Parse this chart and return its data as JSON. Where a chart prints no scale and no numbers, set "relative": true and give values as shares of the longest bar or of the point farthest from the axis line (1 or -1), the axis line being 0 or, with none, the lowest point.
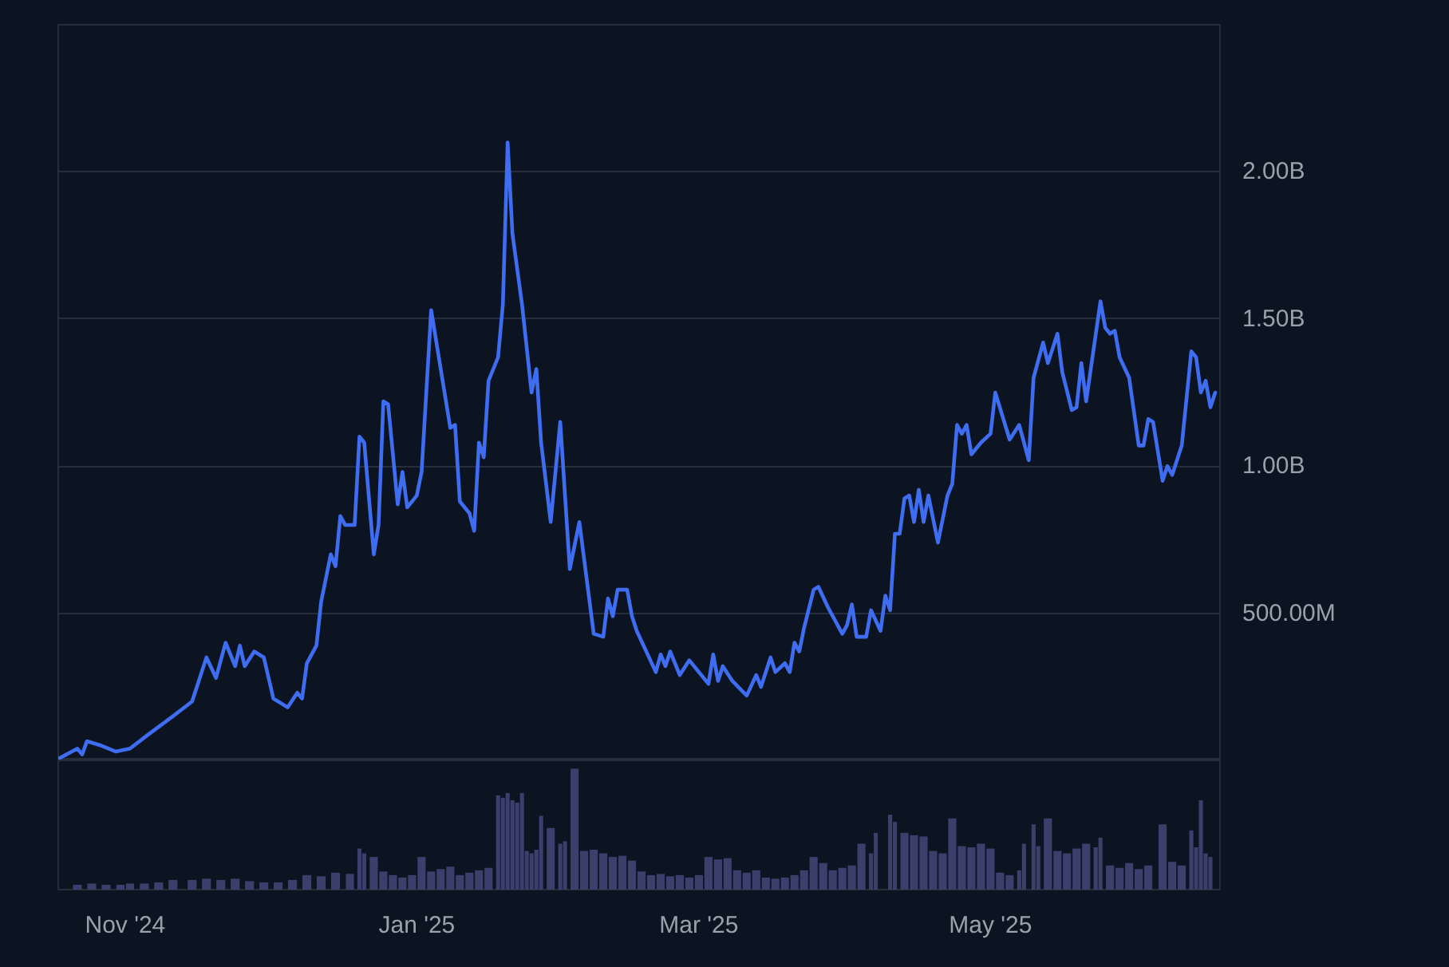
{
  "chart_data": [
    {
      "type": "line",
      "xlim": [
        "2024-10-18",
        "2025-06-18"
      ],
      "ylim": [
        0,
        2500000000.0
      ],
      "yticks": [
        {
          "value": 0,
          "label": null
        },
        {
          "value": 500000000.0,
          "label": "500.00M"
        },
        {
          "value": 1000000000.0,
          "label": "1.00B"
        },
        {
          "value": 1500000000.0,
          "label": "1.50B"
        },
        {
          "value": 2000000000.0,
          "label": "2.00B"
        }
      ],
      "grid": "y",
      "tick_labels": "y",
      "series": [
        {
          "color": "#3f6df2",
          "x": [
            "2024-10-18",
            "2024-10-22",
            "2024-10-23",
            "2024-10-24",
            "2024-10-27",
            "2024-10-30",
            "2024-11-02",
            "2024-11-06",
            "2024-11-11",
            "2024-11-15",
            "2024-11-18",
            "2024-11-20",
            "2024-11-22",
            "2024-11-24",
            "2024-11-25",
            "2024-11-26",
            "2024-11-28",
            "2024-11-30",
            "2024-12-02",
            "2024-12-05",
            "2024-12-07",
            "2024-12-08",
            "2024-12-09",
            "2024-12-11",
            "2024-12-12",
            "2024-12-14",
            "2024-12-15",
            "2024-12-16",
            "2024-12-17",
            "2024-12-19",
            "2024-12-20",
            "2024-12-21",
            "2024-12-23",
            "2024-12-24",
            "2024-12-25",
            "2024-12-26",
            "2024-12-28",
            "2024-12-29",
            "2024-12-30",
            "2025-01-01",
            "2025-01-02",
            "2025-01-04",
            "2025-01-08",
            "2025-01-09",
            "2025-01-10",
            "2025-01-12",
            "2025-01-13",
            "2025-01-14",
            "2025-01-15",
            "2025-01-16",
            "2025-01-18",
            "2025-01-19",
            "2025-01-20",
            "2025-01-21",
            "2025-01-23",
            "2025-01-25",
            "2025-01-26",
            "2025-01-27",
            "2025-01-29",
            "2025-01-31",
            "2025-02-02",
            "2025-02-04",
            "2025-02-07",
            "2025-02-09",
            "2025-02-10",
            "2025-02-11",
            "2025-02-12",
            "2025-02-14",
            "2025-02-15",
            "2025-02-16",
            "2025-02-20",
            "2025-02-21",
            "2025-02-22",
            "2025-02-23",
            "2025-02-25",
            "2025-02-27",
            "2025-03-01",
            "2025-03-03",
            "2025-03-04",
            "2025-03-05",
            "2025-03-06",
            "2025-03-08",
            "2025-03-11",
            "2025-03-13",
            "2025-03-14",
            "2025-03-16",
            "2025-03-17",
            "2025-03-19",
            "2025-03-20",
            "2025-03-21",
            "2025-03-22",
            "2025-03-23",
            "2025-03-25",
            "2025-03-26",
            "2025-03-28",
            "2025-03-31",
            "2025-04-01",
            "2025-04-02",
            "2025-04-03",
            "2025-04-05",
            "2025-04-06",
            "2025-04-08",
            "2025-04-09",
            "2025-04-10",
            "2025-04-11",
            "2025-04-12",
            "2025-04-13",
            "2025-04-14",
            "2025-04-15",
            "2025-04-16",
            "2025-04-17",
            "2025-04-18",
            "2025-04-20",
            "2025-04-22",
            "2025-04-23",
            "2025-04-24",
            "2025-04-25",
            "2025-04-26",
            "2025-04-27",
            "2025-04-29",
            "2025-05-01",
            "2025-05-02",
            "2025-05-05",
            "2025-05-07",
            "2025-05-09",
            "2025-05-10",
            "2025-05-12",
            "2025-05-13",
            "2025-05-15",
            "2025-05-16",
            "2025-05-18",
            "2025-05-19",
            "2025-05-20",
            "2025-05-21",
            "2025-05-24",
            "2025-05-25",
            "2025-05-26",
            "2025-05-27",
            "2025-05-28",
            "2025-05-30",
            "2025-06-01",
            "2025-06-02",
            "2025-06-03",
            "2025-06-04",
            "2025-06-06",
            "2025-06-07",
            "2025-06-08",
            "2025-06-10",
            "2025-06-12",
            "2025-06-13",
            "2025-06-14",
            "2025-06-15",
            "2025-06-16",
            "2025-06-17"
          ],
          "values": [
            5000000.0,
            40000000.0,
            20000000.0,
            65000000.0,
            50000000.0,
            30000000.0,
            40000000.0,
            90000000.0,
            150000000.0,
            200000000.0,
            350000000.0,
            280000000.0,
            400000000.0,
            320000000.0,
            390000000.0,
            320000000.0,
            370000000.0,
            350000000.0,
            210000000.0,
            180000000.0,
            230000000.0,
            210000000.0,
            330000000.0,
            390000000.0,
            540000000.0,
            700000000.0,
            660000000.0,
            830000000.0,
            800000000.0,
            800000000.0,
            1100000000.0,
            1080000000.0,
            700000000.0,
            800000000.0,
            1220000000.0,
            1210000000.0,
            870000000.0,
            980000000.0,
            860000000.0,
            900000000.0,
            980000000.0,
            1530000000.0,
            1130000000.0,
            1140000000.0,
            880000000.0,
            840000000.0,
            780000000.0,
            1080000000.0,
            1030000000.0,
            1290000000.0,
            1370000000.0,
            1550000000.0,
            2100000000.0,
            1790000000.0,
            1550000000.0,
            1250000000.0,
            1330000000.0,
            1080000000.0,
            810000000.0,
            1150000000.0,
            650000000.0,
            810000000.0,
            430000000.0,
            420000000.0,
            550000000.0,
            490000000.0,
            580000000.0,
            580000000.0,
            490000000.0,
            440000000.0,
            300000000.0,
            360000000.0,
            320000000.0,
            370000000.0,
            290000000.0,
            340000000.0,
            300000000.0,
            260000000.0,
            360000000.0,
            270000000.0,
            320000000.0,
            270000000.0,
            220000000.0,
            290000000.0,
            250000000.0,
            350000000.0,
            300000000.0,
            330000000.0,
            300000000.0,
            400000000.0,
            370000000.0,
            450000000.0,
            580000000.0,
            590000000.0,
            520000000.0,
            430000000.0,
            460000000.0,
            530000000.0,
            420000000.0,
            420000000.0,
            510000000.0,
            440000000.0,
            560000000.0,
            510000000.0,
            770000000.0,
            770000000.0,
            890000000.0,
            900000000.0,
            810000000.0,
            920000000.0,
            810000000.0,
            900000000.0,
            740000000.0,
            900000000.0,
            940000000.0,
            1140000000.0,
            1110000000.0,
            1140000000.0,
            1040000000.0,
            1080000000.0,
            1110000000.0,
            1250000000.0,
            1090000000.0,
            1140000000.0,
            1020000000.0,
            1300000000.0,
            1420000000.0,
            1350000000.0,
            1450000000.0,
            1320000000.0,
            1190000000.0,
            1200000000.0,
            1350000000.0,
            1220000000.0,
            1560000000.0,
            1470000000.0,
            1450000000.0,
            1460000000.0,
            1370000000.0,
            1300000000.0,
            1070000000.0,
            1070000000.0,
            1160000000.0,
            1150000000.0,
            950000000.0,
            1000000000.0,
            970000000.0,
            1070000000.0,
            1390000000.0,
            1370000000.0,
            1250000000.0,
            1290000000.0,
            1200000000.0,
            1250000000.0
          ]
        }
      ]
    },
    {
      "type": "bar",
      "relative": true,
      "xlim": [
        "2024-10-18",
        "2025-06-18"
      ],
      "grid": false,
      "tick_labels": "x",
      "xticks": [
        {
          "value": "2024-11-01",
          "label": "Nov '24"
        },
        {
          "value": "2025-01-01",
          "label": "Jan '25"
        },
        {
          "value": "2025-03-01",
          "label": "Mar '25"
        },
        {
          "value": "2025-05-01",
          "label": "May '25"
        }
      ],
      "series": [
        {
          "color": "#3a3f6c",
          "x": [
            "2024-10-22",
            "2024-10-25",
            "2024-10-28",
            "2024-10-31",
            "2024-11-02",
            "2024-11-05",
            "2024-11-08",
            "2024-11-11",
            "2024-11-15",
            "2024-11-18",
            "2024-11-21",
            "2024-11-24",
            "2024-11-27",
            "2024-11-30",
            "2024-12-03",
            "2024-12-06",
            "2024-12-09",
            "2024-12-12",
            "2024-12-15",
            "2024-12-18",
            "2024-12-20",
            "2024-12-21",
            "2024-12-23",
            "2024-12-25",
            "2024-12-27",
            "2024-12-29",
            "2024-12-31",
            "2025-01-02",
            "2025-01-04",
            "2025-01-06",
            "2025-01-08",
            "2025-01-10",
            "2025-01-12",
            "2025-01-14",
            "2025-01-16",
            "2025-01-18",
            "2025-01-19",
            "2025-01-20",
            "2025-01-21",
            "2025-01-22",
            "2025-01-23",
            "2025-01-24",
            "2025-01-25",
            "2025-01-26",
            "2025-01-27",
            "2025-01-29",
            "2025-01-31",
            "2025-02-01",
            "2025-02-03",
            "2025-02-05",
            "2025-02-07",
            "2025-02-09",
            "2025-02-11",
            "2025-02-13",
            "2025-02-15",
            "2025-02-17",
            "2025-02-19",
            "2025-02-21",
            "2025-02-23",
            "2025-02-25",
            "2025-02-27",
            "2025-03-01",
            "2025-03-03",
            "2025-03-05",
            "2025-03-07",
            "2025-03-09",
            "2025-03-11",
            "2025-03-13",
            "2025-03-15",
            "2025-03-17",
            "2025-03-19",
            "2025-03-21",
            "2025-03-23",
            "2025-03-25",
            "2025-03-27",
            "2025-03-29",
            "2025-03-31",
            "2025-04-02",
            "2025-04-04",
            "2025-04-06",
            "2025-04-07",
            "2025-04-10",
            "2025-04-11",
            "2025-04-13",
            "2025-04-15",
            "2025-04-17",
            "2025-04-19",
            "2025-04-21",
            "2025-04-23",
            "2025-04-25",
            "2025-04-27",
            "2025-04-29",
            "2025-05-01",
            "2025-05-03",
            "2025-05-05",
            "2025-05-07",
            "2025-05-08",
            "2025-05-10",
            "2025-05-11",
            "2025-05-13",
            "2025-05-15",
            "2025-05-17",
            "2025-05-19",
            "2025-05-21",
            "2025-05-23",
            "2025-05-24",
            "2025-05-26",
            "2025-05-28",
            "2025-05-30",
            "2025-06-01",
            "2025-06-03",
            "2025-06-06",
            "2025-06-08",
            "2025-06-10",
            "2025-06-12",
            "2025-06-13",
            "2025-06-14",
            "2025-06-15",
            "2025-06-16"
          ],
          "values": [
            0.04,
            0.05,
            0.04,
            0.04,
            0.05,
            0.05,
            0.06,
            0.08,
            0.08,
            0.09,
            0.08,
            0.09,
            0.07,
            0.06,
            0.06,
            0.08,
            0.12,
            0.11,
            0.14,
            0.13,
            0.34,
            0.3,
            0.27,
            0.15,
            0.12,
            0.1,
            0.12,
            0.27,
            0.15,
            0.17,
            0.19,
            0.12,
            0.14,
            0.16,
            0.18,
            0.78,
            0.76,
            0.8,
            0.74,
            0.72,
            0.8,
            0.32,
            0.3,
            0.33,
            0.61,
            0.51,
            0.38,
            0.4,
            1,
            0.32,
            0.33,
            0.3,
            0.27,
            0.28,
            0.24,
            0.15,
            0.12,
            0.13,
            0.11,
            0.12,
            0.1,
            0.12,
            0.27,
            0.25,
            0.26,
            0.16,
            0.14,
            0.16,
            0.1,
            0.09,
            0.1,
            0.12,
            0.16,
            0.27,
            0.22,
            0.16,
            0.18,
            0.2,
            0.38,
            0.3,
            0.47,
            0.62,
            0.56,
            0.47,
            0.45,
            0.44,
            0.32,
            0.3,
            0.59,
            0.36,
            0.35,
            0.38,
            0.34,
            0.14,
            0.12,
            0.16,
            0.38,
            0.54,
            0.36,
            0.59,
            0.32,
            0.3,
            0.34,
            0.38,
            0.35,
            0.43,
            0.2,
            0.18,
            0.22,
            0.17,
            0.2,
            0.54,
            0.23,
            0.2,
            0.49,
            0.35,
            0.74,
            0.3,
            0.27
          ]
        }
      ]
    }
  ]
}
